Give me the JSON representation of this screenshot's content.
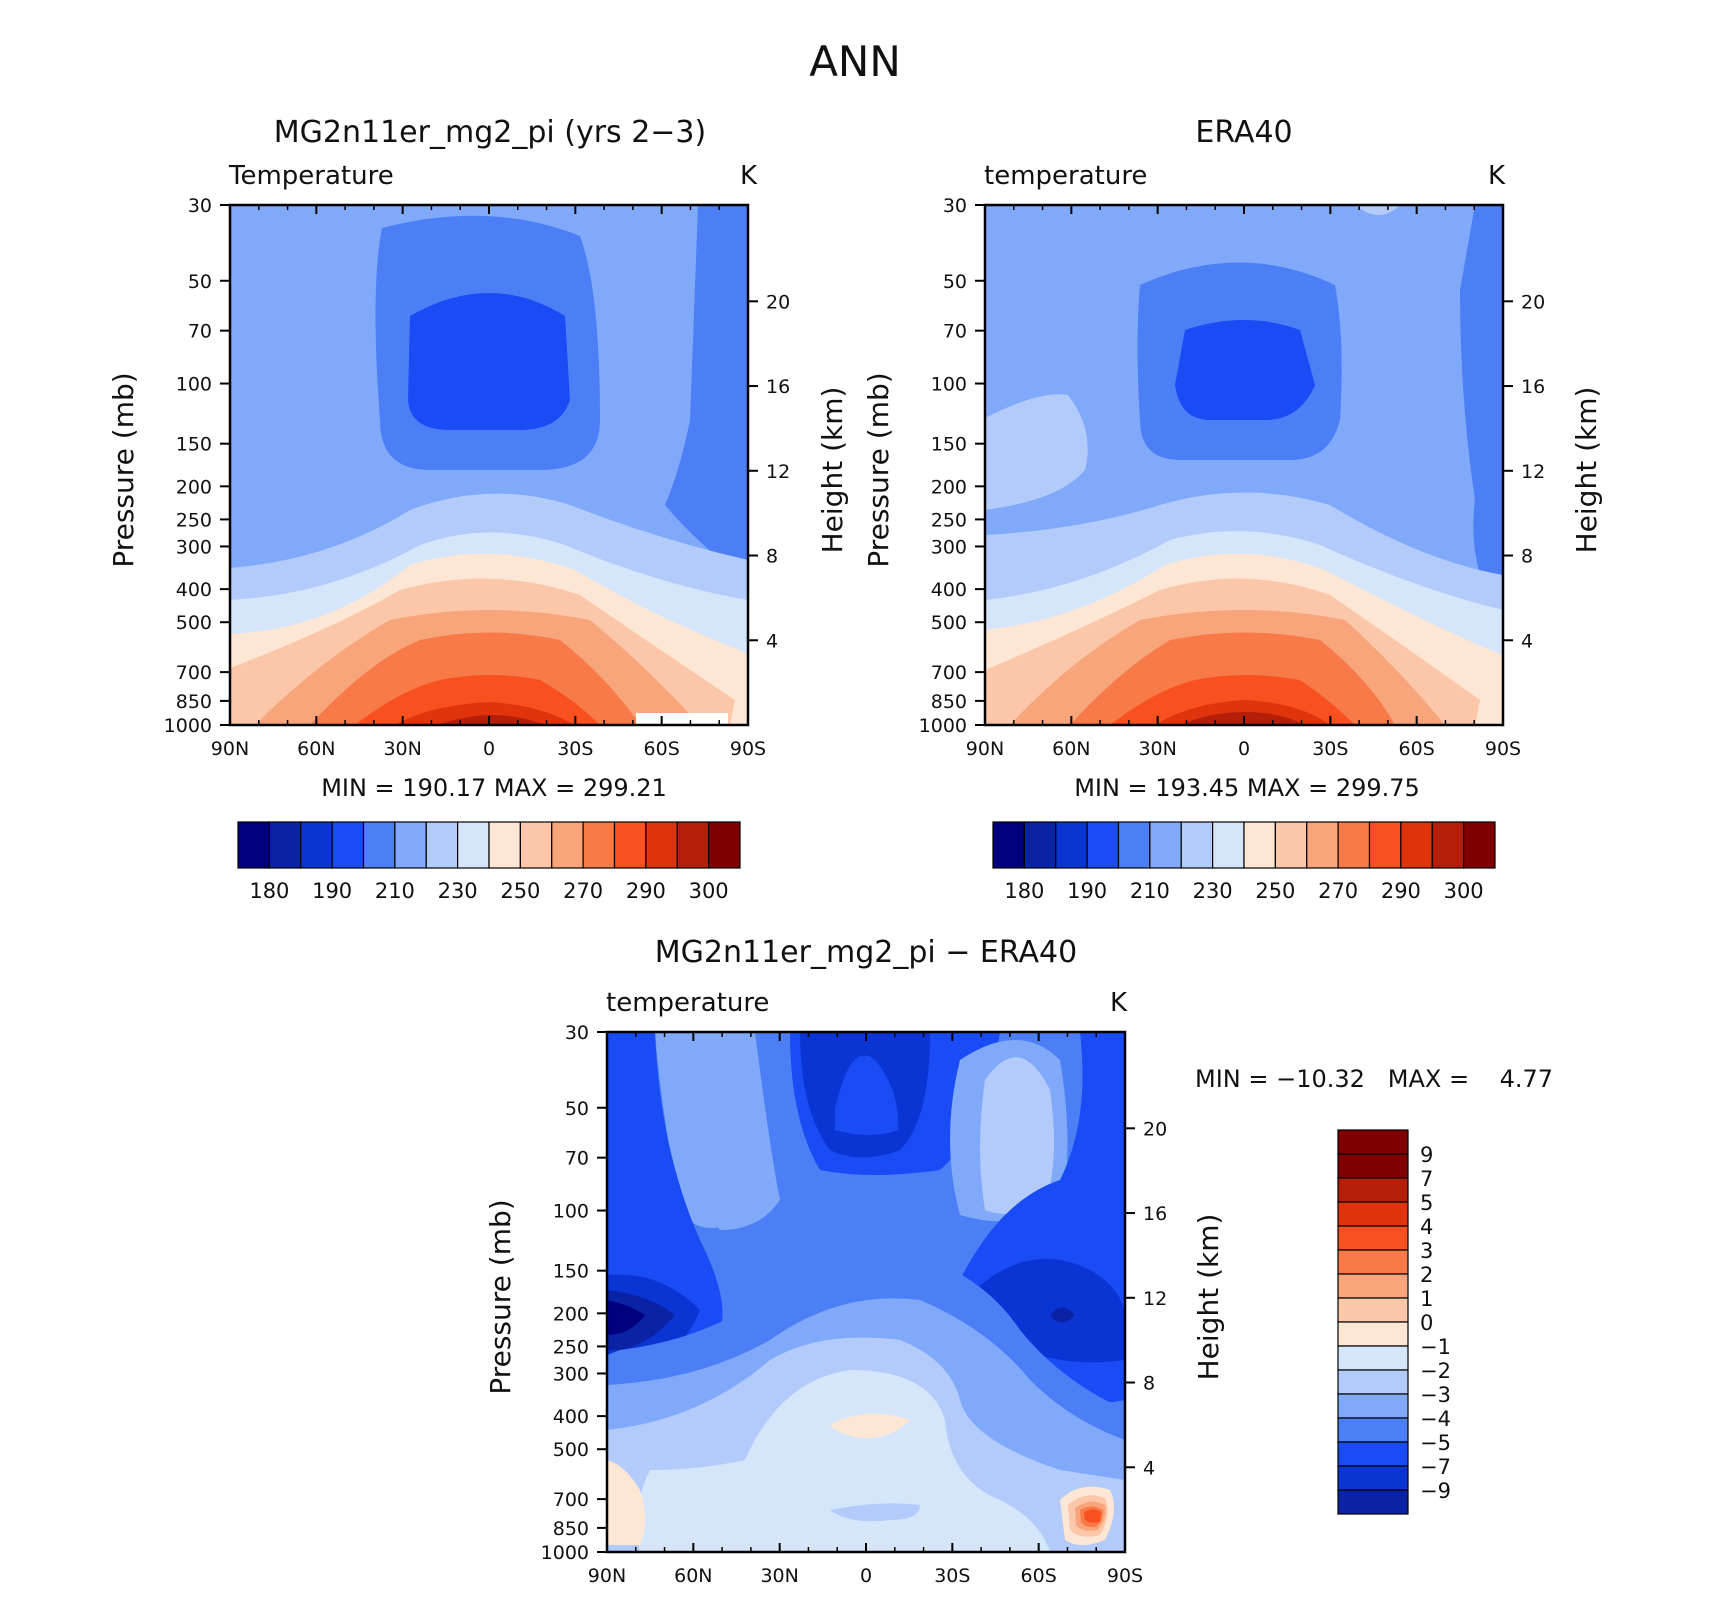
{
  "page_title": "ANN",
  "panels": [
    {
      "title": "MG2n11er_mg2_pi (yrs 2−3)",
      "variable_label": "Temperature",
      "units": "K",
      "stats": "MIN =  190.17   MAX =  299.21"
    },
    {
      "title": "ERA40",
      "variable_label": "temperature",
      "units": "K",
      "stats": "MIN =  193.45   MAX =  299.75"
    },
    {
      "title": "MG2n11er_mg2_pi − ERA40",
      "variable_label": "temperature",
      "units": "K",
      "stats": "MIN = −10.32   MAX =    4.77"
    }
  ],
  "axes": {
    "ylabel": "Pressure (mb)",
    "y2label": "Height (km)"
  },
  "chart_data": [
    {
      "type": "heatmap",
      "title": "MG2n11er_mg2_pi (yrs 2−3)",
      "x_ticks": [
        "90N",
        "60N",
        "30N",
        "0",
        "30S",
        "60S",
        "90S"
      ],
      "y_ticks": [
        "30",
        "50",
        "70",
        "100",
        "150",
        "200",
        "250",
        "300",
        "400",
        "500",
        "700",
        "850",
        "1000"
      ],
      "y2_ticks": [
        "20",
        "16",
        "12",
        "8",
        "4"
      ],
      "ylim": [
        1000,
        30
      ],
      "y_scale": "log",
      "min": 190.17,
      "max": 299.21,
      "colorbar_labels": [
        "180",
        "190",
        "210",
        "230",
        "250",
        "270",
        "290",
        "300"
      ]
    },
    {
      "type": "heatmap",
      "title": "ERA40",
      "x_ticks": [
        "90N",
        "60N",
        "30N",
        "0",
        "30S",
        "60S",
        "90S"
      ],
      "y_ticks": [
        "30",
        "50",
        "70",
        "100",
        "150",
        "200",
        "250",
        "300",
        "400",
        "500",
        "700",
        "850",
        "1000"
      ],
      "y2_ticks": [
        "20",
        "16",
        "12",
        "8",
        "4"
      ],
      "ylim": [
        1000,
        30
      ],
      "y_scale": "log",
      "min": 193.45,
      "max": 299.75,
      "colorbar_labels": [
        "180",
        "190",
        "210",
        "230",
        "250",
        "270",
        "290",
        "300"
      ]
    },
    {
      "type": "heatmap",
      "title": "MG2n11er_mg2_pi − ERA40",
      "x_ticks": [
        "90N",
        "60N",
        "30N",
        "0",
        "30S",
        "60S",
        "90S"
      ],
      "y_ticks": [
        "30",
        "50",
        "70",
        "100",
        "150",
        "200",
        "250",
        "300",
        "400",
        "500",
        "700",
        "850",
        "1000"
      ],
      "y2_ticks": [
        "20",
        "16",
        "12",
        "8",
        "4"
      ],
      "ylim": [
        1000,
        30
      ],
      "y_scale": "log",
      "min": -10.32,
      "max": 4.77,
      "colorbar_labels": [
        "9",
        "7",
        "5",
        "4",
        "3",
        "2",
        "1",
        "0",
        "−1",
        "−2",
        "−3",
        "−4",
        "−5",
        "−7",
        "−9"
      ]
    }
  ],
  "colors": {
    "temp_palette": [
      "#00007f",
      "#0a23a5",
      "#0a35d4",
      "#1a4cf5",
      "#4c7ff5",
      "#80a9fa",
      "#b3cbfa",
      "#d6e6fa",
      "#fde7d4",
      "#fbc7a8",
      "#f8a57c",
      "#f87a48",
      "#f8501f",
      "#e2340c",
      "#b51f0a",
      "#7e0000"
    ],
    "diff_palette": [
      "#7e0000",
      "#b51f0a",
      "#e2340c",
      "#f8501f",
      "#f87a48",
      "#f8a57c",
      "#fbc7a8",
      "#fde7d4",
      "#d6e6fa",
      "#b3cbfa",
      "#80a9fa",
      "#4c7ff5",
      "#1a4cf5",
      "#0a35d4",
      "#0a23a5"
    ]
  }
}
